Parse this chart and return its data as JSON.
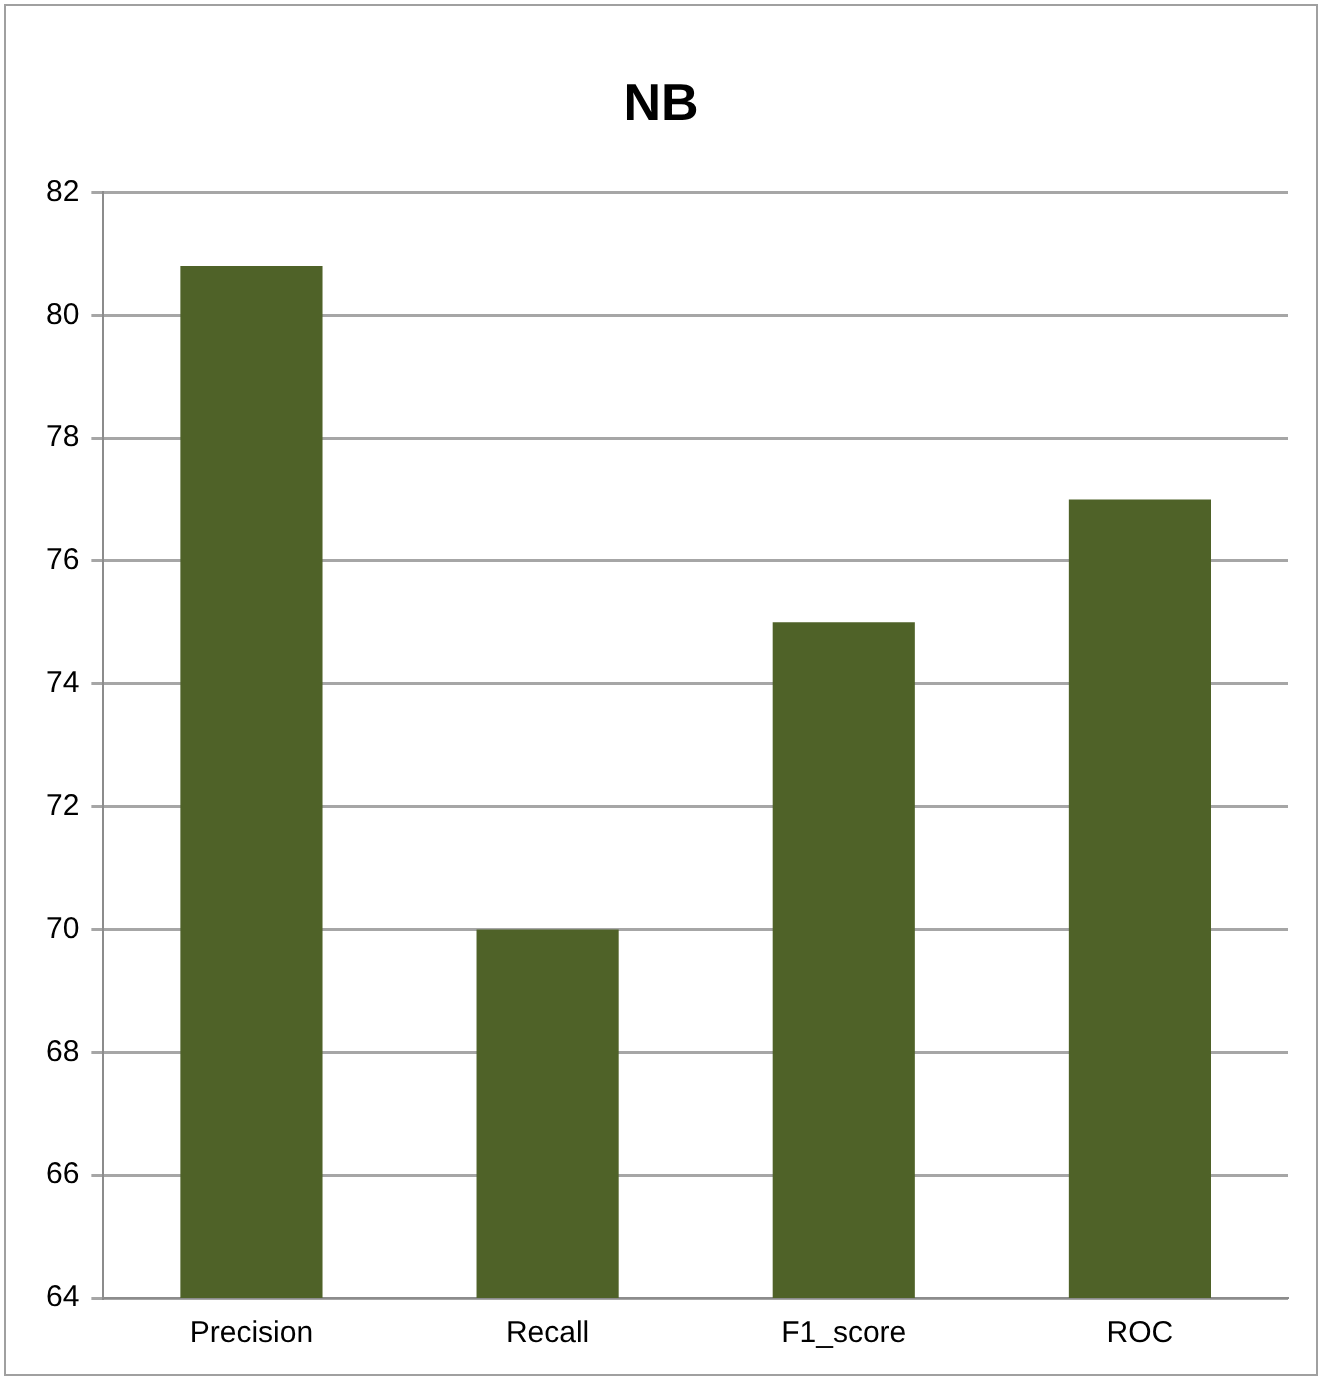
{
  "chart_data": {
    "type": "bar",
    "title": "NB",
    "categories": [
      "Precision",
      "Recall",
      "F1_score",
      "ROC"
    ],
    "values": [
      80.8,
      70.0,
      75.0,
      77.0
    ],
    "color": "#4f6228",
    "ylim": [
      64,
      82
    ],
    "yticks": [
      64,
      66,
      68,
      70,
      72,
      74,
      76,
      78,
      80,
      82
    ],
    "grid": "y",
    "legend": false
  }
}
